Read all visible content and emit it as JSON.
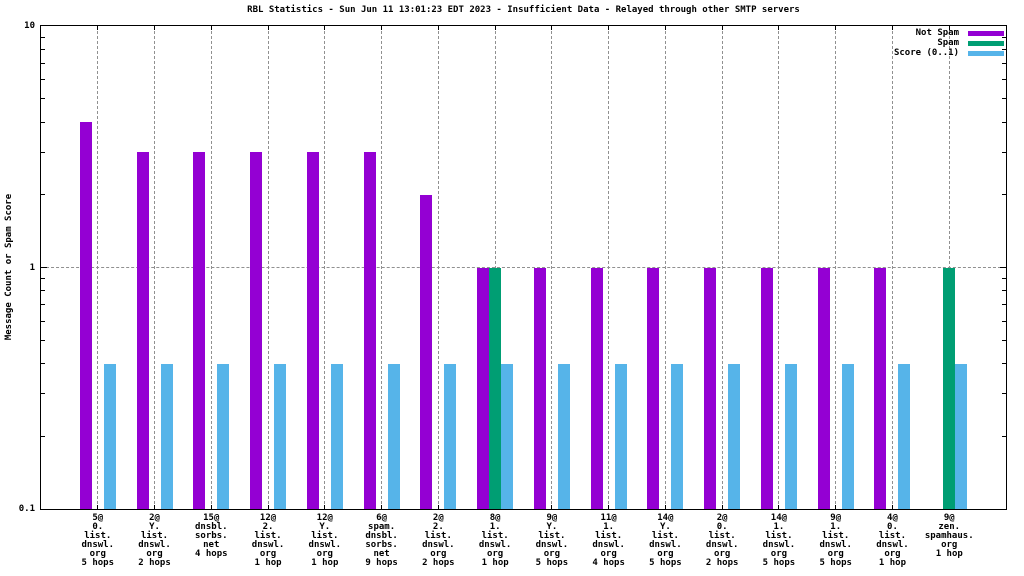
{
  "chart_data": {
    "type": "bar",
    "title": "RBL Statistics - Sun Jun 11 13:01:23 EDT 2023 - Insufficient Data - Relayed through other SMTP servers",
    "ylabel": "Message Count or Spam Score",
    "y_scale": "log",
    "ylim": [
      0.1,
      10
    ],
    "yticks": [
      {
        "value": 10,
        "label": "10"
      },
      {
        "value": 1,
        "label": "1"
      },
      {
        "value": 0.1,
        "label": "0.1"
      }
    ],
    "grid": {
      "horizontal_at": [
        1
      ],
      "vertical": "at-each-category",
      "style": "dashed-gray"
    },
    "legend_position": "top-right-inside",
    "colors": {
      "axis": "#000000",
      "grid": "#909090",
      "background": "#ffffff"
    },
    "categories": [
      [
        "5@",
        "0.",
        "list.",
        "dnswl.",
        "org",
        "5 hops"
      ],
      [
        "2@",
        "Y.",
        "list.",
        "dnswl.",
        "org",
        "2 hops"
      ],
      [
        "15@",
        "dnsbl.",
        "sorbs.",
        "net",
        "4 hops"
      ],
      [
        "12@",
        "2.",
        "list.",
        "dnswl.",
        "org",
        "1 hop"
      ],
      [
        "12@",
        "Y.",
        "list.",
        "dnswl.",
        "org",
        "1 hop"
      ],
      [
        "6@",
        "spam.",
        "dnsbl.",
        "sorbs.",
        "net",
        "9 hops"
      ],
      [
        "2@",
        "2.",
        "list.",
        "dnswl.",
        "org",
        "2 hops"
      ],
      [
        "8@",
        "1.",
        "list.",
        "dnswl.",
        "org",
        "1 hop"
      ],
      [
        "9@",
        "Y.",
        "list.",
        "dnswl.",
        "org",
        "5 hops"
      ],
      [
        "11@",
        "1.",
        "list.",
        "dnswl.",
        "org",
        "4 hops"
      ],
      [
        "14@",
        "Y.",
        "list.",
        "dnswl.",
        "org",
        "5 hops"
      ],
      [
        "2@",
        "0.",
        "list.",
        "dnswl.",
        "org",
        "2 hops"
      ],
      [
        "14@",
        "1.",
        "list.",
        "dnswl.",
        "org",
        "5 hops"
      ],
      [
        "9@",
        "1.",
        "list.",
        "dnswl.",
        "org",
        "5 hops"
      ],
      [
        "4@",
        "0.",
        "list.",
        "dnswl.",
        "org",
        "1 hop"
      ],
      [
        "9@",
        "zen.",
        "spamhaus.",
        "org",
        "1 hop"
      ]
    ],
    "series": [
      {
        "name": "Not Spam",
        "color": "#9400d3",
        "values": [
          4,
          3,
          3,
          3,
          3,
          3,
          2,
          1,
          1,
          1,
          1,
          1,
          1,
          1,
          1,
          0
        ]
      },
      {
        "name": "Spam",
        "color": "#009e73",
        "values": [
          0,
          0,
          0,
          0,
          0,
          0,
          0,
          1,
          0,
          0,
          0,
          0,
          0,
          0,
          0,
          1
        ]
      },
      {
        "name": "Score (0..1)",
        "color": "#56b4e9",
        "values": [
          0.4,
          0.4,
          0.4,
          0.4,
          0.4,
          0.4,
          0.4,
          0.4,
          0.4,
          0.4,
          0.4,
          0.4,
          0.4,
          0.4,
          0.4,
          0.4
        ]
      }
    ]
  }
}
